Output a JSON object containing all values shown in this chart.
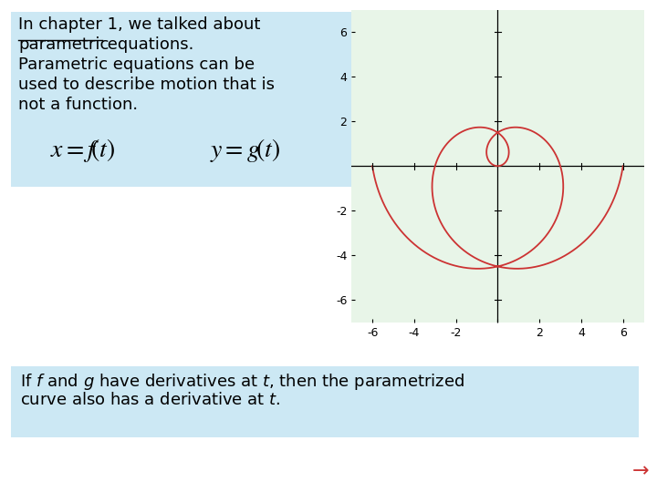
{
  "bg_color": "#ffffff",
  "top_box_color": "#cce8f4",
  "bottom_box_color": "#cce8f4",
  "graph_bg": "#e8f5e8",
  "curve_color": "#cc3333",
  "arrow_color": "#cc3333",
  "xlim": [
    -7,
    7
  ],
  "ylim": [
    -7,
    7
  ],
  "xticks": [
    -6,
    -4,
    -2,
    0,
    2,
    4,
    6
  ],
  "yticks": [
    -6,
    -4,
    -2,
    2,
    4,
    6
  ],
  "font_size_text": 13,
  "font_size_formula": 20,
  "font_size_bottom": 13,
  "font_size_ticks": 9
}
